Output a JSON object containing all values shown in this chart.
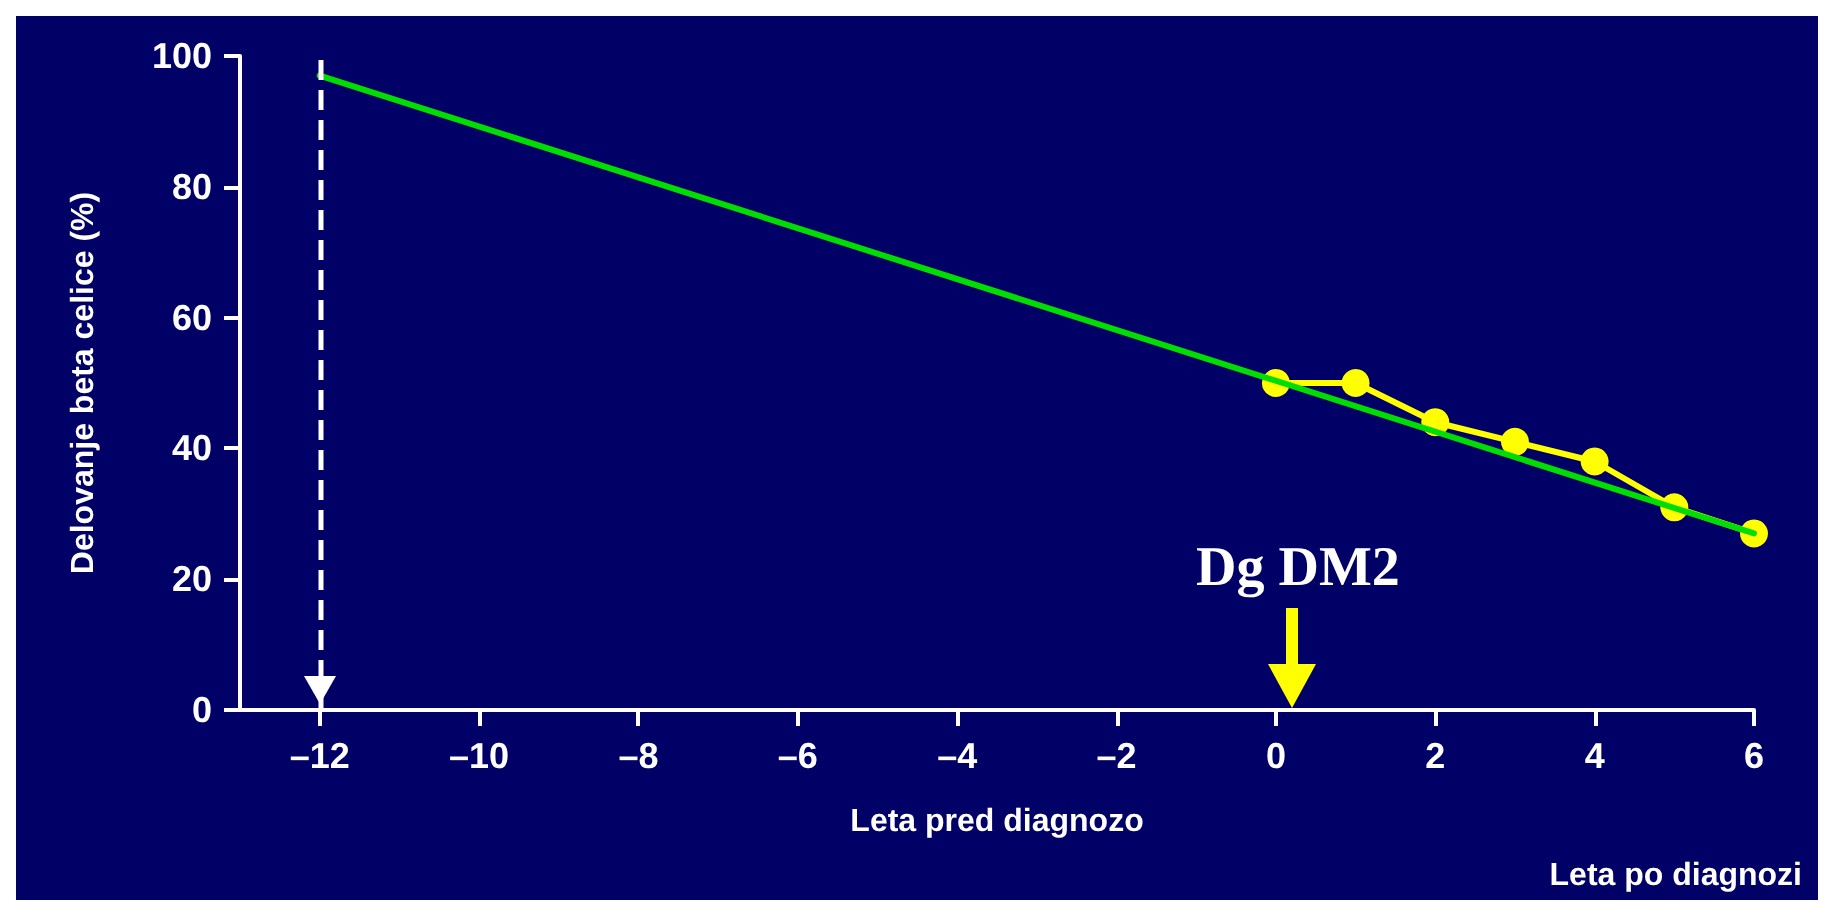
{
  "chart_data": {
    "type": "line",
    "xlabel": "Leta pred diagnozo",
    "ylabel": "Delovanje beta celice (%)",
    "annotations": [
      "Dg DM2",
      "Leta po diagnozi"
    ],
    "series": [
      {
        "color": "#00dd00",
        "x": [
          -12,
          6
        ],
        "values": [
          97,
          27
        ],
        "marker": "none"
      },
      {
        "color": "#ffff00",
        "x": [
          0,
          1,
          2,
          3,
          4,
          5,
          6
        ],
        "values": [
          50,
          50,
          44,
          41,
          38,
          31,
          27
        ],
        "marker": "circle"
      }
    ],
    "ref_lines": [
      {
        "axis": "x",
        "value": -12,
        "color": "#ffffff",
        "line_style": "dashed"
      }
    ],
    "xlim": [
      -13,
      6
    ],
    "xticks": [
      {
        "value": -12,
        "label": "–12"
      },
      {
        "value": -10,
        "label": "–10"
      },
      {
        "value": -8,
        "label": "–8"
      },
      {
        "value": -6,
        "label": "–6"
      },
      {
        "value": -4,
        "label": "–4"
      },
      {
        "value": -2,
        "label": "–2"
      },
      0,
      2,
      4,
      6
    ],
    "ylim": [
      0,
      100
    ],
    "yticks": [
      0,
      20,
      40,
      60,
      80,
      100
    ],
    "grid": false,
    "line_style": "solid"
  }
}
